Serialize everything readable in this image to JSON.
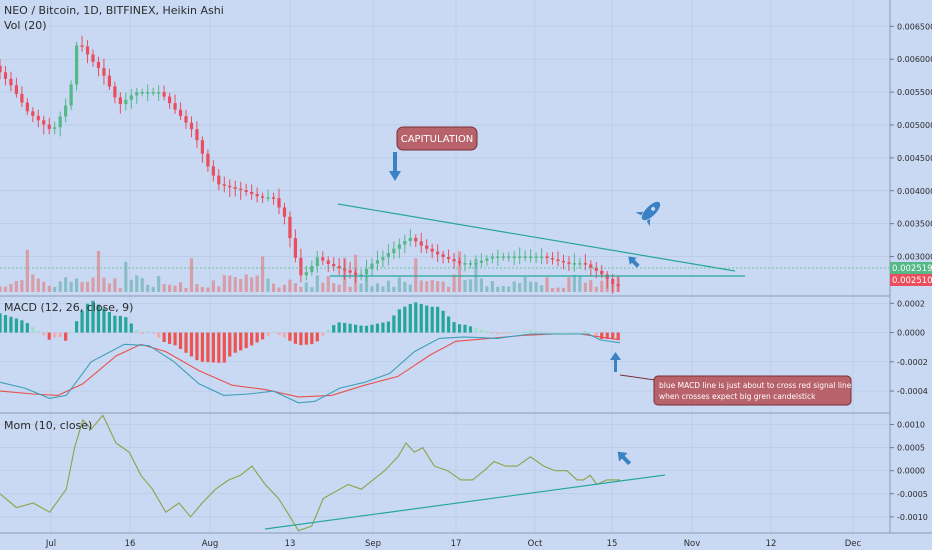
{
  "header": {
    "symbol_line": "NEO / Bitcoin, 1D, BITFINEX, Heikin Ashi",
    "volume_label": "Vol (20)"
  },
  "macd": {
    "label": "MACD (12, 26, close, 9)"
  },
  "mom": {
    "label": "Mom (10, close)"
  },
  "annotations": {
    "capitulation": "CAPITULATION",
    "macd_note_line1": "blue MACD line is just about to cross red signal line",
    "macd_note_line2": "when crosses expect big gren candelstick"
  },
  "colors": {
    "background": "#c9d9f3",
    "up_candle": "#53b987",
    "down_candle": "#eb4d5c",
    "macd_line": "#3e9fb8",
    "signal_line": "#e8514f",
    "momentum_line": "#8fa14a",
    "trend_line": "#26a69a",
    "arrow_blue": "#3b82c4",
    "note_fill": "#b8626b"
  },
  "chart_data": [
    {
      "type": "candlestick",
      "title": "NEO / Bitcoin, 1D, BITFINEX, Heikin Ashi",
      "x_ticks": [
        "Jul",
        "16",
        "Aug",
        "13",
        "Sep",
        "17",
        "Oct",
        "15",
        "Nov",
        "12",
        "Dec"
      ],
      "y_ticks": [
        "0.006500",
        "0.006000",
        "0.005500",
        "0.005000",
        "0.004500",
        "0.004000",
        "0.003500",
        "0.003000"
      ],
      "price_tags": [
        {
          "value": "0.002519",
          "color": "#53b987"
        },
        {
          "value": "0.002510",
          "color": "#eb4d5c"
        }
      ],
      "ylim": [
        0.0024,
        0.0069
      ],
      "approx_close_path": [
        [
          0,
          0.0059
        ],
        [
          10,
          0.0056
        ],
        [
          20,
          0.0052
        ],
        [
          35,
          0.0049
        ],
        [
          45,
          0.0054
        ],
        [
          50,
          0.0063
        ],
        [
          58,
          0.006
        ],
        [
          65,
          0.0058
        ],
        [
          75,
          0.0053
        ],
        [
          85,
          0.0055
        ],
        [
          100,
          0.0055
        ],
        [
          110,
          0.0052
        ],
        [
          120,
          0.0049
        ],
        [
          128,
          0.0044
        ],
        [
          135,
          0.0041
        ],
        [
          150,
          0.004
        ],
        [
          160,
          0.0039
        ],
        [
          168,
          0.0039
        ],
        [
          175,
          0.0036
        ],
        [
          180,
          0.0031
        ],
        [
          185,
          0.0027
        ],
        [
          190,
          0.0028
        ],
        [
          195,
          0.003
        ],
        [
          200,
          0.0029
        ],
        [
          210,
          0.0028
        ],
        [
          220,
          0.0027
        ],
        [
          228,
          0.0029
        ],
        [
          235,
          0.003
        ],
        [
          245,
          0.0032
        ],
        [
          252,
          0.0033
        ],
        [
          255,
          0.0032
        ],
        [
          262,
          0.0031
        ],
        [
          270,
          0.003
        ],
        [
          280,
          0.0029
        ],
        [
          290,
          0.0029
        ],
        [
          300,
          0.003
        ],
        [
          315,
          0.003
        ],
        [
          330,
          0.003
        ],
        [
          345,
          0.0029
        ],
        [
          355,
          0.0029
        ],
        [
          362,
          0.0028
        ],
        [
          368,
          0.0027
        ],
        [
          374,
          0.00255
        ]
      ]
    },
    {
      "type": "line",
      "title": "MACD (12, 26, close, 9)",
      "y_ticks": [
        "0.0002",
        "0.0000",
        "-0.0002",
        "-0.0004"
      ],
      "ylim": [
        -0.00055,
        0.00025
      ],
      "series": [
        {
          "name": "MACD",
          "points": [
            [
              0,
              -0.00034
            ],
            [
              15,
              -0.00038
            ],
            [
              30,
              -0.00045
            ],
            [
              40,
              -0.00043
            ],
            [
              55,
              -0.0002
            ],
            [
              75,
              -8e-05
            ],
            [
              90,
              -9e-05
            ],
            [
              105,
              -0.0002
            ],
            [
              120,
              -0.00035
            ],
            [
              135,
              -0.00043
            ],
            [
              150,
              -0.00042
            ],
            [
              165,
              -0.0004
            ],
            [
              180,
              -0.00048
            ],
            [
              190,
              -0.00047
            ],
            [
              205,
              -0.00038
            ],
            [
              220,
              -0.00034
            ],
            [
              235,
              -0.00028
            ],
            [
              250,
              -0.00013
            ],
            [
              265,
              -4e-05
            ],
            [
              280,
              -3e-05
            ],
            [
              300,
              -4e-05
            ],
            [
              320,
              -1e-05
            ],
            [
              340,
              -1e-05
            ],
            [
              355,
              -1e-05
            ],
            [
              362,
              -5e-05
            ],
            [
              374,
              -7e-05
            ]
          ]
        },
        {
          "name": "Signal",
          "points": [
            [
              0,
              -0.0004
            ],
            [
              20,
              -0.00042
            ],
            [
              35,
              -0.00043
            ],
            [
              50,
              -0.00035
            ],
            [
              70,
              -0.00016
            ],
            [
              85,
              -8e-05
            ],
            [
              100,
              -0.00013
            ],
            [
              120,
              -0.00026
            ],
            [
              140,
              -0.00036
            ],
            [
              160,
              -0.00039
            ],
            [
              180,
              -0.00044
            ],
            [
              200,
              -0.00043
            ],
            [
              220,
              -0.00036
            ],
            [
              240,
              -0.0003
            ],
            [
              260,
              -0.00015
            ],
            [
              275,
              -6e-05
            ],
            [
              295,
              -4e-05
            ],
            [
              315,
              -2e-05
            ],
            [
              335,
              -1e-05
            ],
            [
              350,
              -1e-05
            ],
            [
              362,
              -3e-05
            ],
            [
              374,
              -5e-05
            ]
          ]
        }
      ]
    },
    {
      "type": "line",
      "title": "Mom (10, close)",
      "y_ticks": [
        "0.0010",
        "0.0005",
        "0.0000",
        "-0.0005",
        "-0.0010"
      ],
      "ylim": [
        -0.00135,
        0.00125
      ],
      "series": [
        {
          "name": "Mom",
          "points": [
            [
              0,
              -0.0005
            ],
            [
              10,
              -0.0008
            ],
            [
              20,
              -0.0007
            ],
            [
              30,
              -0.0009
            ],
            [
              40,
              -0.0004
            ],
            [
              45,
              0.0005
            ],
            [
              50,
              0.0011
            ],
            [
              55,
              0.0009
            ],
            [
              62,
              0.0012
            ],
            [
              70,
              0.0006
            ],
            [
              78,
              0.0004
            ],
            [
              85,
              -0.0001
            ],
            [
              92,
              -0.0004
            ],
            [
              100,
              -0.0009
            ],
            [
              108,
              -0.0007
            ],
            [
              115,
              -0.001
            ],
            [
              122,
              -0.0007
            ],
            [
              130,
              -0.0004
            ],
            [
              138,
              -0.0002
            ],
            [
              145,
              -0.0001
            ],
            [
              152,
              0.0001
            ],
            [
              160,
              -0.0003
            ],
            [
              168,
              -0.0006
            ],
            [
              175,
              -0.001
            ],
            [
              180,
              -0.0013
            ],
            [
              188,
              -0.0012
            ],
            [
              195,
              -0.0006
            ],
            [
              200,
              -0.0005
            ],
            [
              210,
              -0.0003
            ],
            [
              218,
              -0.0004
            ],
            [
              225,
              -0.0002
            ],
            [
              232,
              0.0
            ],
            [
              240,
              0.0003
            ],
            [
              245,
              0.0006
            ],
            [
              250,
              0.0004
            ],
            [
              255,
              0.0005
            ],
            [
              262,
              0.0001
            ],
            [
              270,
              0.0
            ],
            [
              278,
              -0.0002
            ],
            [
              285,
              -0.0002
            ],
            [
              292,
              0.0
            ],
            [
              298,
              0.0002
            ],
            [
              305,
              0.0001
            ],
            [
              312,
              0.0001
            ],
            [
              320,
              0.0003
            ],
            [
              328,
              0.0001
            ],
            [
              335,
              0.0
            ],
            [
              342,
              0.0
            ],
            [
              348,
              -0.0002
            ],
            [
              352,
              -0.0002
            ],
            [
              356,
              -0.0001
            ],
            [
              360,
              -0.0003
            ],
            [
              366,
              -0.0002
            ],
            [
              374,
              -0.0002
            ]
          ]
        }
      ]
    }
  ]
}
